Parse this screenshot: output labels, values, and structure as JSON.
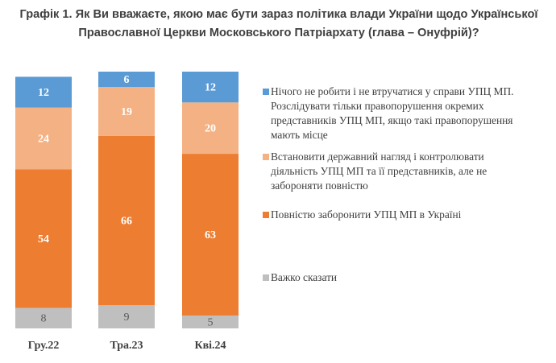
{
  "chart_data": {
    "type": "bar",
    "stacked": true,
    "title": "Графік 1. Як Ви вважаєте, якою має бути зараз політика влади України щодо Української Православної Церкви Московського Патріархату (глава – Онуфрій)?",
    "categories": [
      "Гру.22",
      "Тра.23",
      "Кві.24"
    ],
    "series": [
      {
        "name": "Нічого не робити і не втручатися у справи УПЦ МП. Розслідувати тільки правопорушення окремих представників УПЦ МП, якщо такі правопорушення мають місце",
        "color": "#5b9bd5",
        "values": [
          12,
          6,
          12
        ]
      },
      {
        "name": "Встановити державний нагляд і контролювати діяльність УПЦ МП та її представників, але не забороняти повністю",
        "color": "#f4b183",
        "values": [
          24,
          19,
          20
        ]
      },
      {
        "name": "Повністю заборонити УПЦ МП в Україні",
        "color": "#ed7d31",
        "values": [
          54,
          66,
          63
        ]
      },
      {
        "name": "Важко сказати",
        "color": "#bfbfbf",
        "values": [
          8,
          9,
          5
        ]
      }
    ],
    "ylim": [
      0,
      100
    ],
    "xlabel": "",
    "ylabel": ""
  }
}
